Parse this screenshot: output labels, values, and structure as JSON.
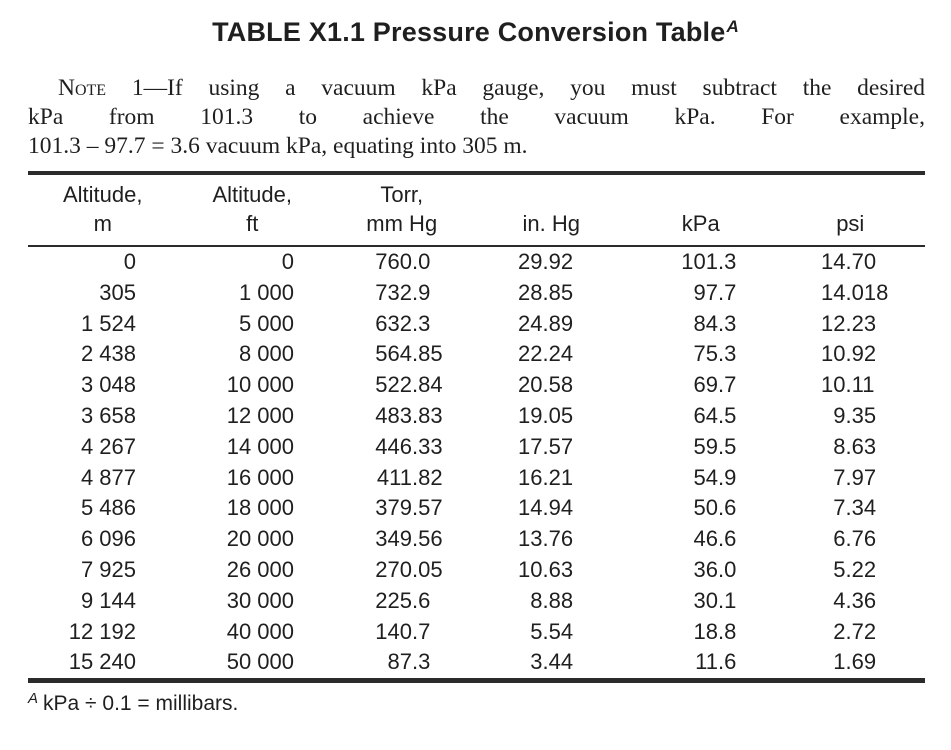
{
  "title": {
    "text": "TABLE X1.1 Pressure Conversion Table",
    "footnote_ref": "A"
  },
  "note": {
    "label": "Note",
    "line1_rest": " 1—If using a vacuum kPa gauge, you must subtract the desired",
    "line2": "kPa from 101.3 to achieve the vacuum kPa. For example,",
    "line3": "101.3 – 97.7 = 3.6 vacuum kPa, equating into 305 m."
  },
  "table": {
    "columns": [
      {
        "top": "Altitude,",
        "bottom": "m"
      },
      {
        "top": "Altitude,",
        "bottom": "ft"
      },
      {
        "top": "Torr,",
        "bottom": "mm Hg"
      },
      {
        "top": "",
        "bottom": "in. Hg"
      },
      {
        "top": "",
        "bottom": "kPa"
      },
      {
        "top": "",
        "bottom": "psi"
      }
    ],
    "rows": [
      [
        "0",
        "0",
        "760.0",
        "29.92",
        "101.3",
        "14.70"
      ],
      [
        "305",
        "1 000",
        "732.9",
        "28.85",
        "97.7",
        "14.018"
      ],
      [
        "1 524",
        "5 000",
        "632.3",
        "24.89",
        "84.3",
        "12.23"
      ],
      [
        "2 438",
        "8 000",
        "564.85",
        "22.24",
        "75.3",
        "10.92"
      ],
      [
        "3 048",
        "10 000",
        "522.84",
        "20.58",
        "69.7",
        "10.11"
      ],
      [
        "3 658",
        "12 000",
        "483.83",
        "19.05",
        "64.5",
        "9.35"
      ],
      [
        "4 267",
        "14 000",
        "446.33",
        "17.57",
        "59.5",
        "8.63"
      ],
      [
        "4 877",
        "16 000",
        "411.82",
        "16.21",
        "54.9",
        "7.97"
      ],
      [
        "5 486",
        "18 000",
        "379.57",
        "14.94",
        "50.6",
        "7.34"
      ],
      [
        "6 096",
        "20 000",
        "349.56",
        "13.76",
        "46.6",
        "6.76"
      ],
      [
        "7 925",
        "26 000",
        "270.05",
        "10.63",
        "36.0",
        "5.22"
      ],
      [
        "9 144",
        "30 000",
        "225.6",
        "8.88",
        "30.1",
        "4.36"
      ],
      [
        "12 192",
        "40 000",
        "140.7",
        "5.54",
        "18.8",
        "2.72"
      ],
      [
        "15 240",
        "50 000",
        "87.3",
        "3.44",
        "11.6",
        "1.69"
      ]
    ]
  },
  "footnote": {
    "ref": "A",
    "text": "kPa ÷ 0.1 = millibars."
  },
  "colors": {
    "text": "#1f1f1f",
    "rule": "#2b2b2b",
    "background": "#ffffff"
  }
}
